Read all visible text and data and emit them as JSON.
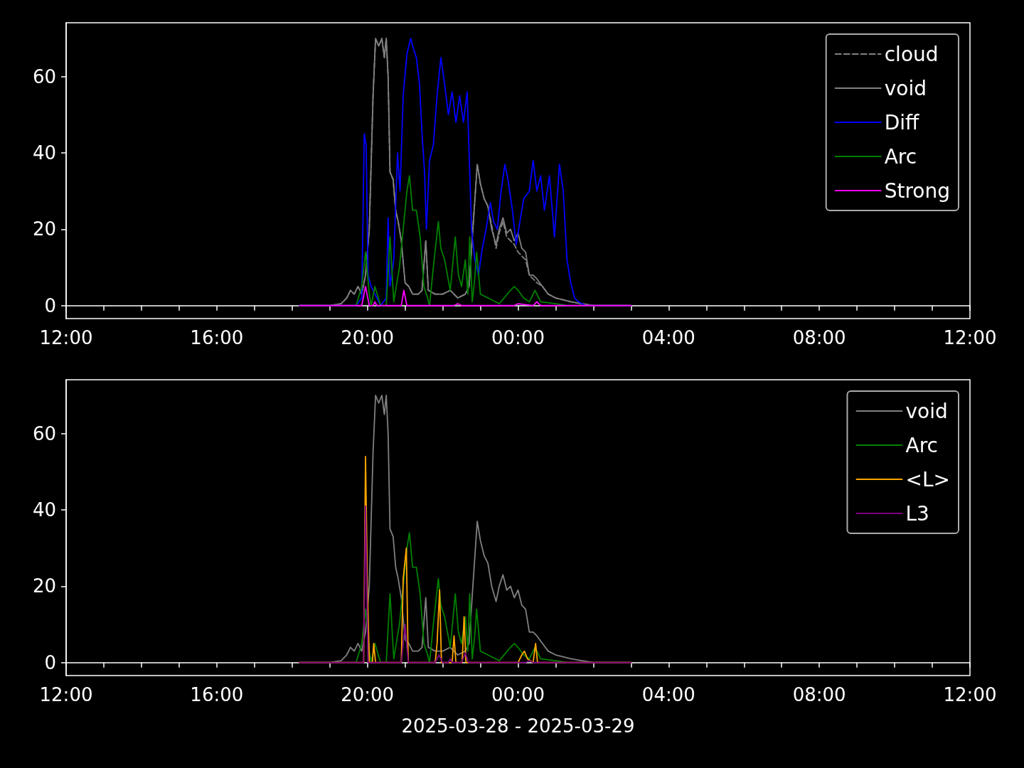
{
  "chart_data": [
    {
      "type": "line",
      "legend": "top right",
      "ylim": [
        -3.4,
        74.1
      ],
      "yticks": [
        0,
        20,
        40,
        60
      ],
      "xlim": [
        "2025-03-28T12:00",
        "2025-03-29T12:00"
      ],
      "xticks": [
        {
          "value": "2025-03-28T12:00",
          "label": "12:00"
        },
        {
          "value": "2025-03-28T13:00",
          "label": null
        },
        {
          "value": "2025-03-28T14:00",
          "label": null
        },
        {
          "value": "2025-03-28T15:00",
          "label": null
        },
        {
          "value": "2025-03-28T16:00",
          "label": "16:00"
        },
        {
          "value": "2025-03-28T17:00",
          "label": null
        },
        {
          "value": "2025-03-28T18:00",
          "label": null
        },
        {
          "value": "2025-03-28T19:00",
          "label": null
        },
        {
          "value": "2025-03-28T20:00",
          "label": "20:00"
        },
        {
          "value": "2025-03-28T21:00",
          "label": null
        },
        {
          "value": "2025-03-28T22:00",
          "label": null
        },
        {
          "value": "2025-03-28T23:00",
          "label": null
        },
        {
          "value": "2025-03-29T00:00",
          "label": "00:00"
        },
        {
          "value": "2025-03-29T01:00",
          "label": null
        },
        {
          "value": "2025-03-29T02:00",
          "label": null
        },
        {
          "value": "2025-03-29T03:00",
          "label": null
        },
        {
          "value": "2025-03-29T04:00",
          "label": "04:00"
        },
        {
          "value": "2025-03-29T05:00",
          "label": null
        },
        {
          "value": "2025-03-29T06:00",
          "label": null
        },
        {
          "value": "2025-03-29T07:00",
          "label": null
        },
        {
          "value": "2025-03-29T08:00",
          "label": "08:00"
        },
        {
          "value": "2025-03-29T09:00",
          "label": null
        },
        {
          "value": "2025-03-29T10:00",
          "label": null
        },
        {
          "value": "2025-03-29T11:00",
          "label": null
        },
        {
          "value": "2025-03-29T12:00",
          "label": "12:00"
        }
      ],
      "series": [
        {
          "name": "cloud",
          "color": "#808080",
          "line_style": "dashed",
          "x": [
            "2025-03-28T18:12",
            "2025-03-28T19:00",
            "2025-03-28T19:18",
            "2025-03-28T19:27",
            "2025-03-28T19:33",
            "2025-03-28T19:39",
            "2025-03-28T19:45",
            "2025-03-28T19:51",
            "2025-03-28T19:57",
            "2025-03-28T20:03",
            "2025-03-28T20:09",
            "2025-03-28T20:13",
            "2025-03-28T20:18",
            "2025-03-28T20:23",
            "2025-03-28T20:27",
            "2025-03-28T20:30",
            "2025-03-28T20:33",
            "2025-03-28T20:36",
            "2025-03-28T20:41",
            "2025-03-28T20:45",
            "2025-03-28T20:49",
            "2025-03-28T20:54",
            "2025-03-28T21:00",
            "2025-03-28T21:06",
            "2025-03-28T21:12",
            "2025-03-28T21:21",
            "2025-03-28T21:27",
            "2025-03-28T21:33",
            "2025-03-28T21:37",
            "2025-03-28T21:48",
            "2025-03-28T22:00",
            "2025-03-28T22:12",
            "2025-03-28T22:24",
            "2025-03-28T22:36",
            "2025-03-28T22:42",
            "2025-03-28T22:48",
            "2025-03-28T22:55",
            "2025-03-28T23:00",
            "2025-03-28T23:06",
            "2025-03-28T23:12",
            "2025-03-28T23:18",
            "2025-03-28T23:25",
            "2025-03-28T23:30",
            "2025-03-28T23:36",
            "2025-03-28T23:42",
            "2025-03-28T23:48",
            "2025-03-28T23:54",
            "2025-03-29T00:00",
            "2025-03-29T00:06",
            "2025-03-29T00:12",
            "2025-03-29T00:18",
            "2025-03-29T00:24",
            "2025-03-29T00:30",
            "2025-03-29T00:39",
            "2025-03-29T00:48",
            "2025-03-29T01:00",
            "2025-03-29T01:12",
            "2025-03-29T01:24",
            "2025-03-29T01:42",
            "2025-03-29T02:00",
            "2025-03-29T03:00"
          ],
          "values": [
            0,
            0,
            0.5,
            2,
            4,
            3,
            5,
            3,
            8,
            20,
            55,
            70,
            68,
            70,
            65,
            70,
            60,
            35,
            33,
            25,
            22,
            17,
            6,
            5,
            3,
            3,
            4,
            17,
            4,
            3,
            3,
            4,
            2,
            3,
            5,
            20,
            37,
            32,
            28,
            26,
            21,
            15,
            19,
            22,
            18,
            17,
            16,
            14,
            13,
            12,
            8,
            7,
            6,
            5,
            3,
            2,
            1.5,
            1,
            0.5,
            0,
            0
          ]
        },
        {
          "name": "void",
          "color": "#808080",
          "x": [
            "2025-03-28T18:12",
            "2025-03-28T19:00",
            "2025-03-28T19:18",
            "2025-03-28T19:27",
            "2025-03-28T19:33",
            "2025-03-28T19:39",
            "2025-03-28T19:45",
            "2025-03-28T19:51",
            "2025-03-28T19:57",
            "2025-03-28T20:03",
            "2025-03-28T20:09",
            "2025-03-28T20:13",
            "2025-03-28T20:18",
            "2025-03-28T20:23",
            "2025-03-28T20:27",
            "2025-03-28T20:30",
            "2025-03-28T20:33",
            "2025-03-28T20:36",
            "2025-03-28T20:41",
            "2025-03-28T20:45",
            "2025-03-28T20:49",
            "2025-03-28T20:54",
            "2025-03-28T21:00",
            "2025-03-28T21:06",
            "2025-03-28T21:12",
            "2025-03-28T21:21",
            "2025-03-28T21:27",
            "2025-03-28T21:33",
            "2025-03-28T21:37",
            "2025-03-28T21:48",
            "2025-03-28T22:00",
            "2025-03-28T22:12",
            "2025-03-28T22:24",
            "2025-03-28T22:36",
            "2025-03-28T22:42",
            "2025-03-28T22:48",
            "2025-03-28T22:55",
            "2025-03-28T23:00",
            "2025-03-28T23:06",
            "2025-03-28T23:12",
            "2025-03-28T23:18",
            "2025-03-28T23:25",
            "2025-03-28T23:30",
            "2025-03-28T23:36",
            "2025-03-28T23:42",
            "2025-03-28T23:48",
            "2025-03-28T23:54",
            "2025-03-29T00:00",
            "2025-03-29T00:06",
            "2025-03-29T00:12",
            "2025-03-29T00:18",
            "2025-03-29T00:24",
            "2025-03-29T00:30",
            "2025-03-29T00:39",
            "2025-03-29T00:48",
            "2025-03-29T01:00",
            "2025-03-29T01:12",
            "2025-03-29T01:24",
            "2025-03-29T01:42",
            "2025-03-29T02:00",
            "2025-03-29T03:00"
          ],
          "values": [
            0,
            0,
            0.5,
            2,
            4,
            3,
            5,
            3,
            8,
            20,
            55,
            70,
            68,
            70,
            65,
            70,
            60,
            35,
            33,
            25,
            22,
            17,
            6,
            5,
            3,
            3,
            4,
            17,
            4,
            3,
            3,
            4,
            2,
            3,
            5,
            20,
            37,
            32,
            28,
            26,
            20,
            16,
            20,
            23,
            19,
            20,
            17,
            19,
            15,
            14,
            8,
            8,
            7,
            5,
            3,
            2,
            1.5,
            1,
            0.5,
            0,
            0
          ]
        },
        {
          "name": "Diff",
          "color": "#0000ff",
          "x": [
            "2025-03-28T18:12",
            "2025-03-28T19:42",
            "2025-03-28T19:51",
            "2025-03-28T19:55",
            "2025-03-28T19:58",
            "2025-03-28T20:01",
            "2025-03-28T20:06",
            "2025-03-28T20:12",
            "2025-03-28T20:21",
            "2025-03-28T20:30",
            "2025-03-28T20:33",
            "2025-03-28T20:36",
            "2025-03-28T20:42",
            "2025-03-28T20:48",
            "2025-03-28T20:52",
            "2025-03-28T20:57",
            "2025-03-28T21:03",
            "2025-03-28T21:09",
            "2025-03-28T21:12",
            "2025-03-28T21:18",
            "2025-03-28T21:23",
            "2025-03-28T21:27",
            "2025-03-28T21:31",
            "2025-03-28T21:34",
            "2025-03-28T21:39",
            "2025-03-28T21:45",
            "2025-03-28T21:51",
            "2025-03-28T21:57",
            "2025-03-28T22:03",
            "2025-03-28T22:09",
            "2025-03-28T22:15",
            "2025-03-28T22:21",
            "2025-03-28T22:27",
            "2025-03-28T22:33",
            "2025-03-28T22:39",
            "2025-03-28T22:42",
            "2025-03-28T22:46",
            "2025-03-28T22:51",
            "2025-03-28T22:57",
            "2025-03-28T23:03",
            "2025-03-28T23:09",
            "2025-03-28T23:16",
            "2025-03-28T23:21",
            "2025-03-28T23:27",
            "2025-03-28T23:33",
            "2025-03-28T23:39",
            "2025-03-28T23:44",
            "2025-03-28T23:51",
            "2025-03-28T23:57",
            "2025-03-29T00:03",
            "2025-03-29T00:09",
            "2025-03-29T00:18",
            "2025-03-29T00:24",
            "2025-03-29T00:30",
            "2025-03-29T00:36",
            "2025-03-29T00:42",
            "2025-03-29T00:50",
            "2025-03-29T00:58",
            "2025-03-29T01:03",
            "2025-03-29T01:06",
            "2025-03-29T01:12",
            "2025-03-29T01:18",
            "2025-03-29T01:24",
            "2025-03-29T01:30",
            "2025-03-29T01:36",
            "2025-03-29T01:48",
            "2025-03-29T03:00"
          ],
          "values": [
            0,
            0,
            2,
            45,
            42,
            8,
            5,
            3,
            0,
            2,
            23,
            5,
            12,
            40,
            30,
            55,
            66,
            70,
            68,
            65,
            58,
            45,
            35,
            20,
            38,
            42,
            55,
            65,
            58,
            50,
            56,
            48,
            55,
            48,
            56,
            40,
            20,
            12,
            8,
            15,
            20,
            27,
            22,
            20,
            30,
            37,
            33,
            25,
            16,
            22,
            28,
            30,
            38,
            30,
            34,
            25,
            34,
            18,
            30,
            37,
            30,
            12,
            6,
            2,
            1,
            0,
            0
          ]
        },
        {
          "name": "Arc",
          "color": "#008000",
          "x": [
            "2025-03-28T18:12",
            "2025-03-28T19:42",
            "2025-03-28T19:51",
            "2025-03-28T19:57",
            "2025-03-28T20:03",
            "2025-03-28T20:06",
            "2025-03-28T20:12",
            "2025-03-28T20:21",
            "2025-03-28T20:30",
            "2025-03-28T20:36",
            "2025-03-28T20:42",
            "2025-03-28T20:51",
            "2025-03-28T20:57",
            "2025-03-28T21:03",
            "2025-03-28T21:07",
            "2025-03-28T21:12",
            "2025-03-28T21:18",
            "2025-03-28T21:24",
            "2025-03-28T21:30",
            "2025-03-28T21:36",
            "2025-03-28T21:39",
            "2025-03-28T21:45",
            "2025-03-28T21:53",
            "2025-03-28T21:57",
            "2025-03-28T22:03",
            "2025-03-28T22:12",
            "2025-03-28T22:20",
            "2025-03-28T22:25",
            "2025-03-28T22:30",
            "2025-03-28T22:36",
            "2025-03-28T22:40",
            "2025-03-28T22:43",
            "2025-03-28T22:47",
            "2025-03-28T22:51",
            "2025-03-28T22:54",
            "2025-03-28T23:00",
            "2025-03-28T23:12",
            "2025-03-28T23:30",
            "2025-03-28T23:48",
            "2025-03-28T23:54",
            "2025-03-29T00:00",
            "2025-03-29T00:09",
            "2025-03-29T00:18",
            "2025-03-29T00:27",
            "2025-03-29T00:36",
            "2025-03-29T01:00",
            "2025-03-29T01:18",
            "2025-03-29T03:00"
          ],
          "values": [
            0,
            0,
            5,
            14,
            3,
            0,
            5,
            0,
            0,
            18,
            1,
            10,
            20,
            30,
            34,
            25,
            25,
            18,
            5,
            2,
            0,
            10,
            22,
            15,
            12,
            4,
            18,
            8,
            5,
            12,
            3,
            18,
            1,
            7,
            14,
            3,
            2,
            0.5,
            4,
            5,
            4,
            2,
            1,
            4,
            1,
            0.5,
            0,
            0
          ]
        },
        {
          "name": "Strong",
          "color": "#ff00ff",
          "x": [
            "2025-03-28T18:12",
            "2025-03-28T19:51",
            "2025-03-28T19:57",
            "2025-03-28T20:03",
            "2025-03-28T20:09",
            "2025-03-28T20:12",
            "2025-03-28T20:15",
            "2025-03-28T20:54",
            "2025-03-28T20:58",
            "2025-03-28T21:03",
            "2025-03-28T22:18",
            "2025-03-28T22:24",
            "2025-03-28T22:30",
            "2025-03-28T23:54",
            "2025-03-29T00:00",
            "2025-03-29T00:24",
            "2025-03-29T00:30",
            "2025-03-29T00:36",
            "2025-03-29T03:00"
          ],
          "values": [
            0,
            0,
            5,
            0,
            0,
            1,
            0,
            0,
            4,
            0,
            0,
            0.5,
            0,
            0,
            0.5,
            0,
            1,
            0,
            0
          ]
        }
      ]
    },
    {
      "type": "line",
      "legend": "top right",
      "xlabel": "2025-03-28 - 2025-03-29",
      "ylim": [
        -3.4,
        74.1
      ],
      "yticks": [
        0,
        20,
        40,
        60
      ],
      "xlim": [
        "2025-03-28T12:00",
        "2025-03-29T12:00"
      ],
      "xticks": [
        {
          "value": "2025-03-28T12:00",
          "label": "12:00"
        },
        {
          "value": "2025-03-28T13:00",
          "label": null
        },
        {
          "value": "2025-03-28T14:00",
          "label": null
        },
        {
          "value": "2025-03-28T15:00",
          "label": null
        },
        {
          "value": "2025-03-28T16:00",
          "label": "16:00"
        },
        {
          "value": "2025-03-28T17:00",
          "label": null
        },
        {
          "value": "2025-03-28T18:00",
          "label": null
        },
        {
          "value": "2025-03-28T19:00",
          "label": null
        },
        {
          "value": "2025-03-28T20:00",
          "label": "20:00"
        },
        {
          "value": "2025-03-28T21:00",
          "label": null
        },
        {
          "value": "2025-03-28T22:00",
          "label": null
        },
        {
          "value": "2025-03-28T23:00",
          "label": null
        },
        {
          "value": "2025-03-29T00:00",
          "label": "00:00"
        },
        {
          "value": "2025-03-29T01:00",
          "label": null
        },
        {
          "value": "2025-03-29T02:00",
          "label": null
        },
        {
          "value": "2025-03-29T03:00",
          "label": null
        },
        {
          "value": "2025-03-29T04:00",
          "label": "04:00"
        },
        {
          "value": "2025-03-29T05:00",
          "label": null
        },
        {
          "value": "2025-03-29T06:00",
          "label": null
        },
        {
          "value": "2025-03-29T07:00",
          "label": null
        },
        {
          "value": "2025-03-29T08:00",
          "label": "08:00"
        },
        {
          "value": "2025-03-29T09:00",
          "label": null
        },
        {
          "value": "2025-03-29T10:00",
          "label": null
        },
        {
          "value": "2025-03-29T11:00",
          "label": null
        },
        {
          "value": "2025-03-29T12:00",
          "label": "12:00"
        }
      ],
      "series": [
        {
          "name": "void",
          "color": "#808080",
          "x": [
            "2025-03-28T18:12",
            "2025-03-28T19:00",
            "2025-03-28T19:18",
            "2025-03-28T19:27",
            "2025-03-28T19:33",
            "2025-03-28T19:39",
            "2025-03-28T19:45",
            "2025-03-28T19:51",
            "2025-03-28T19:57",
            "2025-03-28T20:03",
            "2025-03-28T20:09",
            "2025-03-28T20:13",
            "2025-03-28T20:18",
            "2025-03-28T20:23",
            "2025-03-28T20:27",
            "2025-03-28T20:30",
            "2025-03-28T20:33",
            "2025-03-28T20:36",
            "2025-03-28T20:41",
            "2025-03-28T20:45",
            "2025-03-28T20:49",
            "2025-03-28T20:54",
            "2025-03-28T21:00",
            "2025-03-28T21:06",
            "2025-03-28T21:12",
            "2025-03-28T21:21",
            "2025-03-28T21:27",
            "2025-03-28T21:33",
            "2025-03-28T21:37",
            "2025-03-28T21:48",
            "2025-03-28T22:00",
            "2025-03-28T22:12",
            "2025-03-28T22:24",
            "2025-03-28T22:36",
            "2025-03-28T22:42",
            "2025-03-28T22:48",
            "2025-03-28T22:55",
            "2025-03-28T23:00",
            "2025-03-28T23:06",
            "2025-03-28T23:12",
            "2025-03-28T23:18",
            "2025-03-28T23:25",
            "2025-03-28T23:30",
            "2025-03-28T23:36",
            "2025-03-28T23:42",
            "2025-03-28T23:48",
            "2025-03-28T23:54",
            "2025-03-29T00:00",
            "2025-03-29T00:06",
            "2025-03-29T00:12",
            "2025-03-29T00:18",
            "2025-03-29T00:24",
            "2025-03-29T00:30",
            "2025-03-29T00:39",
            "2025-03-29T00:48",
            "2025-03-29T01:00",
            "2025-03-29T01:12",
            "2025-03-29T01:24",
            "2025-03-29T01:42",
            "2025-03-29T02:00",
            "2025-03-29T03:00"
          ],
          "values": [
            0,
            0,
            0.5,
            2,
            4,
            3,
            5,
            3,
            8,
            20,
            55,
            70,
            68,
            70,
            65,
            70,
            60,
            35,
            33,
            25,
            22,
            17,
            6,
            5,
            3,
            3,
            4,
            17,
            4,
            3,
            3,
            4,
            2,
            3,
            5,
            20,
            37,
            32,
            28,
            26,
            20,
            16,
            20,
            23,
            19,
            20,
            17,
            19,
            15,
            14,
            8,
            8,
            7,
            5,
            3,
            2,
            1.5,
            1,
            0.5,
            0,
            0
          ]
        },
        {
          "name": "Arc",
          "color": "#008000",
          "x": [
            "2025-03-28T18:12",
            "2025-03-28T19:42",
            "2025-03-28T19:51",
            "2025-03-28T19:57",
            "2025-03-28T20:03",
            "2025-03-28T20:06",
            "2025-03-28T20:12",
            "2025-03-28T20:21",
            "2025-03-28T20:30",
            "2025-03-28T20:36",
            "2025-03-28T20:42",
            "2025-03-28T20:51",
            "2025-03-28T20:57",
            "2025-03-28T21:03",
            "2025-03-28T21:07",
            "2025-03-28T21:12",
            "2025-03-28T21:18",
            "2025-03-28T21:24",
            "2025-03-28T21:30",
            "2025-03-28T21:36",
            "2025-03-28T21:39",
            "2025-03-28T21:45",
            "2025-03-28T21:53",
            "2025-03-28T21:57",
            "2025-03-28T22:03",
            "2025-03-28T22:12",
            "2025-03-28T22:20",
            "2025-03-28T22:25",
            "2025-03-28T22:30",
            "2025-03-28T22:36",
            "2025-03-28T22:40",
            "2025-03-28T22:43",
            "2025-03-28T22:47",
            "2025-03-28T22:51",
            "2025-03-28T22:54",
            "2025-03-28T23:00",
            "2025-03-28T23:12",
            "2025-03-28T23:30",
            "2025-03-28T23:48",
            "2025-03-28T23:54",
            "2025-03-29T00:00",
            "2025-03-29T00:09",
            "2025-03-29T00:18",
            "2025-03-29T00:27",
            "2025-03-29T00:36",
            "2025-03-29T01:00",
            "2025-03-29T01:18",
            "2025-03-29T03:00"
          ],
          "values": [
            0,
            0,
            5,
            14,
            3,
            0,
            5,
            0,
            0,
            18,
            1,
            10,
            20,
            30,
            34,
            25,
            25,
            18,
            5,
            2,
            0,
            10,
            22,
            15,
            12,
            4,
            18,
            8,
            5,
            12,
            3,
            18,
            1,
            7,
            14,
            3,
            2,
            0.5,
            4,
            5,
            4,
            2,
            1,
            4,
            1,
            0.5,
            0,
            0
          ]
        },
        {
          "name": "<L>",
          "color": "#ffa500",
          "x": [
            "2025-03-28T18:12",
            "2025-03-28T19:54",
            "2025-03-28T19:57",
            "2025-03-28T20:00",
            "2025-03-28T20:03",
            "2025-03-28T20:08",
            "2025-03-28T20:10",
            "2025-03-28T20:13",
            "2025-03-28T20:54",
            "2025-03-28T20:57",
            "2025-03-28T21:02",
            "2025-03-28T21:05",
            "2025-03-28T21:48",
            "2025-03-28T21:51",
            "2025-03-28T21:55",
            "2025-03-28T21:58",
            "2025-03-28T22:15",
            "2025-03-28T22:18",
            "2025-03-28T22:21",
            "2025-03-28T22:31",
            "2025-03-28T22:34",
            "2025-03-28T22:37",
            "2025-03-29T00:00",
            "2025-03-29T00:06",
            "2025-03-29T00:10",
            "2025-03-29T00:15",
            "2025-03-29T00:24",
            "2025-03-29T00:28",
            "2025-03-29T00:31",
            "2025-03-29T03:00"
          ],
          "values": [
            0,
            0,
            54,
            20,
            0,
            0,
            5,
            0,
            0,
            22,
            30,
            0,
            0,
            5,
            19,
            0,
            0,
            7,
            0,
            0,
            12,
            0,
            0,
            2,
            3,
            1,
            0,
            5,
            0,
            0
          ]
        },
        {
          "name": "L3",
          "color": "#800080",
          "x": [
            "2025-03-28T18:12",
            "2025-03-28T19:54",
            "2025-03-28T19:57",
            "2025-03-28T20:01",
            "2025-03-28T20:54",
            "2025-03-28T21:00",
            "2025-03-28T21:05",
            "2025-03-28T21:48",
            "2025-03-28T21:54",
            "2025-03-28T22:00",
            "2025-03-28T22:09",
            "2025-03-28T22:12",
            "2025-03-28T22:15",
            "2025-03-28T22:30",
            "2025-03-28T22:36",
            "2025-03-28T22:41",
            "2025-03-29T00:12",
            "2025-03-29T00:18",
            "2025-03-29T00:24",
            "2025-03-29T03:00"
          ],
          "values": [
            0,
            0,
            41,
            0,
            0,
            10,
            0,
            0,
            2,
            0,
            0,
            1,
            0,
            0,
            2.5,
            0,
            0,
            0.5,
            0,
            0
          ]
        }
      ]
    }
  ]
}
